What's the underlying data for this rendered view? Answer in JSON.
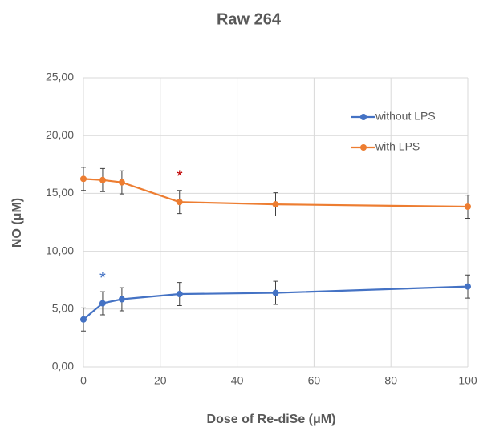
{
  "chart_data": {
    "type": "line",
    "title": "Raw 264",
    "x_label": "Dose of Re-diSe (μM)",
    "y_label": "NO (μM)",
    "x": [
      0,
      5,
      10,
      25,
      50,
      100
    ],
    "series": [
      {
        "name": "without LPS",
        "color": "#4472c4",
        "values": [
          4.1,
          5.5,
          5.85,
          6.3,
          6.4,
          6.95
        ],
        "errors": [
          1,
          1,
          1,
          1,
          1,
          1
        ]
      },
      {
        "name": "with LPS",
        "color": "#ed7d31",
        "values": [
          16.25,
          16.15,
          15.95,
          14.25,
          14.05,
          13.85
        ],
        "errors": [
          1,
          1,
          1,
          1,
          1,
          1
        ]
      }
    ],
    "annotations": [
      {
        "text": "*",
        "x": 5,
        "y": 7.6,
        "color": "#4472c4"
      },
      {
        "text": "*",
        "x": 25,
        "y": 16.4,
        "color": "#c00000"
      }
    ],
    "xlim": [
      0,
      100
    ],
    "xticks": [
      0,
      20,
      40,
      60,
      80,
      100
    ],
    "ylim": [
      0,
      25
    ],
    "yticks": [
      {
        "value": 0,
        "label": "0,00"
      },
      {
        "value": 5,
        "label": "5,00"
      },
      {
        "value": 10,
        "label": "10,00"
      },
      {
        "value": 15,
        "label": "15,00"
      },
      {
        "value": 20,
        "label": "20,00"
      },
      {
        "value": 25,
        "label": "25,00"
      }
    ],
    "grid": true,
    "legend": "upper right"
  }
}
